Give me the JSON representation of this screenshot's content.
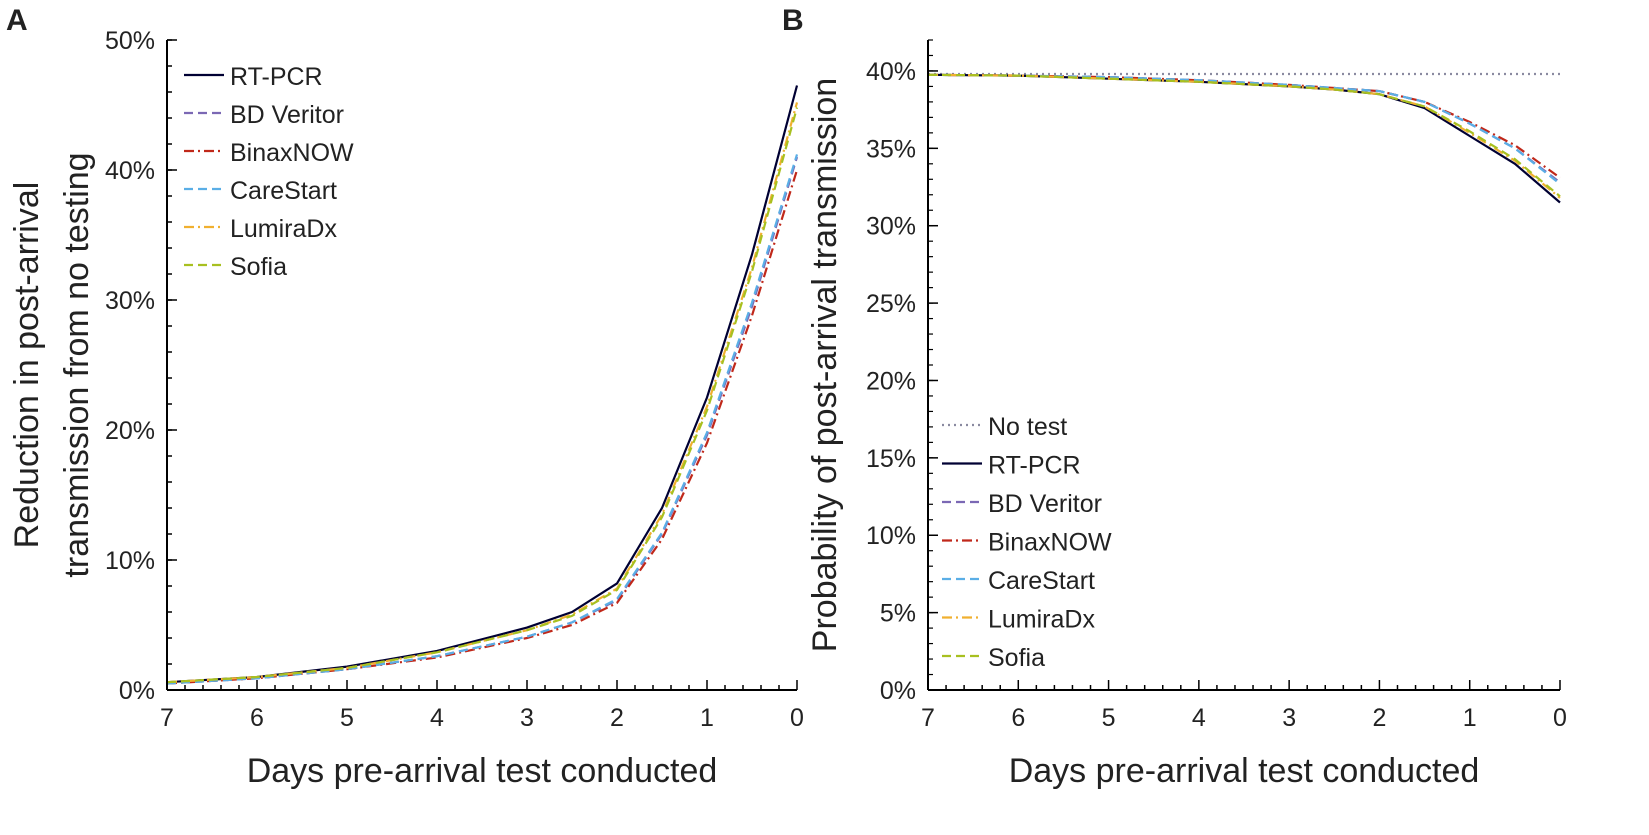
{
  "chart_data": [
    {
      "panel_label": "A",
      "type": "line",
      "xlabel": "Days pre-arrival test conducted",
      "ylabel": [
        "Reduction in post-arrival",
        "transmission from no testing"
      ],
      "xlim": [
        7,
        0
      ],
      "ylim": [
        0,
        50
      ],
      "xticks": [
        "7",
        "6",
        "5",
        "4",
        "3",
        "2",
        "1",
        "0"
      ],
      "yticks": [
        "0%",
        "10%",
        "20%",
        "30%",
        "40%",
        "50%"
      ],
      "legend_position": "top-left",
      "x": [
        7,
        6,
        5,
        4,
        3,
        2.5,
        2,
        1.5,
        1,
        0.5,
        0
      ],
      "series": [
        {
          "name": "RT-PCR",
          "color": "#000033",
          "dash": "solid",
          "values": [
            0.6,
            1.0,
            1.8,
            3.0,
            4.8,
            6.0,
            8.2,
            14.0,
            22.5,
            33.5,
            46.5
          ]
        },
        {
          "name": "BD Veritor",
          "color": "#7b68b4",
          "dash": "dash",
          "values": [
            0.5,
            0.9,
            1.6,
            2.6,
            4.1,
            5.2,
            6.9,
            12.0,
            19.6,
            29.5,
            41.0
          ]
        },
        {
          "name": "BinaxNOW",
          "color": "#c0281a",
          "dash": "dashdot",
          "values": [
            0.5,
            0.9,
            1.6,
            2.5,
            4.0,
            5.0,
            6.7,
            11.6,
            19.0,
            28.8,
            40.0
          ]
        },
        {
          "name": "CareStart",
          "color": "#5aaee6",
          "dash": "dash",
          "values": [
            0.5,
            0.9,
            1.6,
            2.6,
            4.1,
            5.2,
            7.0,
            12.1,
            19.8,
            29.8,
            41.2
          ]
        },
        {
          "name": "LumiraDx",
          "color": "#f0b030",
          "dash": "dashdot",
          "values": [
            0.6,
            1.0,
            1.7,
            2.9,
            4.6,
            5.8,
            7.8,
            13.5,
            21.8,
            32.5,
            45.2
          ]
        },
        {
          "name": "Sofia",
          "color": "#a8c020",
          "dash": "dash",
          "values": [
            0.6,
            1.0,
            1.7,
            2.9,
            4.6,
            5.7,
            7.7,
            13.3,
            21.5,
            32.2,
            44.8
          ]
        }
      ]
    },
    {
      "panel_label": "B",
      "type": "line",
      "xlabel": "Days pre-arrival test conducted",
      "ylabel": [
        "Probability of post-arrival transmission"
      ],
      "xlim": [
        7,
        0
      ],
      "ylim": [
        0,
        42
      ],
      "xticks": [
        "7",
        "6",
        "5",
        "4",
        "3",
        "2",
        "1",
        "0"
      ],
      "yticks": [
        "0%",
        "5%",
        "10%",
        "15%",
        "20%",
        "25%",
        "30%",
        "35%",
        "40%"
      ],
      "legend_position": "bottom-left",
      "x": [
        7,
        6,
        5,
        4,
        3,
        2.5,
        2,
        1.5,
        1,
        0.5,
        0
      ],
      "series": [
        {
          "name": "No test",
          "color": "#8a8aa0",
          "dash": "dot",
          "values": [
            39.8,
            39.8,
            39.8,
            39.8,
            39.8,
            39.8,
            39.8,
            39.8,
            39.8,
            39.8,
            39.8
          ]
        },
        {
          "name": "RT-PCR",
          "color": "#000033",
          "dash": "solid",
          "values": [
            39.75,
            39.7,
            39.5,
            39.3,
            39.0,
            38.8,
            38.5,
            37.6,
            35.8,
            34.0,
            31.5
          ]
        },
        {
          "name": "BD Veritor",
          "color": "#7b68b4",
          "dash": "dash",
          "values": [
            39.75,
            39.7,
            39.6,
            39.4,
            39.1,
            38.9,
            38.7,
            38.0,
            36.6,
            35.0,
            32.8
          ]
        },
        {
          "name": "BinaxNOW",
          "color": "#c0281a",
          "dash": "dashdot",
          "values": [
            39.75,
            39.7,
            39.6,
            39.4,
            39.1,
            38.9,
            38.7,
            38.0,
            36.7,
            35.2,
            33.1
          ]
        },
        {
          "name": "CareStart",
          "color": "#5aaee6",
          "dash": "dash",
          "values": [
            39.75,
            39.7,
            39.6,
            39.4,
            39.1,
            38.9,
            38.7,
            38.0,
            36.6,
            35.0,
            32.7
          ]
        },
        {
          "name": "LumiraDx",
          "color": "#f0b030",
          "dash": "dashdot",
          "values": [
            39.75,
            39.7,
            39.5,
            39.3,
            39.0,
            38.8,
            38.5,
            37.7,
            36.0,
            34.2,
            31.8
          ]
        },
        {
          "name": "Sofia",
          "color": "#a8c020",
          "dash": "dash",
          "values": [
            39.75,
            39.7,
            39.5,
            39.3,
            39.0,
            38.8,
            38.5,
            37.7,
            36.1,
            34.3,
            31.9
          ]
        }
      ]
    }
  ]
}
